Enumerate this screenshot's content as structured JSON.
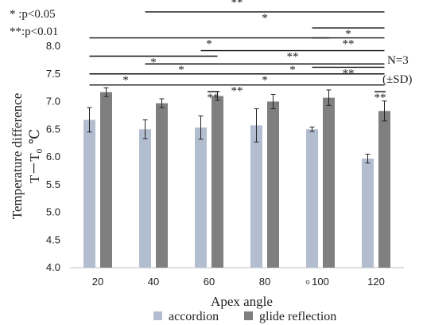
{
  "chart_data": {
    "type": "bar",
    "categories": [
      "20",
      "40",
      "60",
      "80",
      "100",
      "120"
    ],
    "series": [
      {
        "name": "accordion",
        "color": "#b3bdd0",
        "values": [
          6.67,
          6.5,
          6.53,
          6.57,
          6.5,
          5.97
        ],
        "errors": [
          0.22,
          0.17,
          0.21,
          0.3,
          0.04,
          0.08
        ]
      },
      {
        "name": "glide reflection",
        "color": "#7f7f7f",
        "values": [
          7.17,
          6.97,
          7.1,
          7.0,
          7.07,
          6.83
        ],
        "errors": [
          0.08,
          0.08,
          0.08,
          0.13,
          0.14,
          0.18
        ]
      }
    ],
    "ylim": [
      4.0,
      8.0
    ],
    "yticks": [
      "4.0",
      "4.5",
      "5.0",
      "5.5",
      "6.0",
      "6.5",
      "7.0",
      "7.5",
      "8.0"
    ],
    "xlabel": "Apex angle",
    "xunit": "°",
    "ylabel_line1": "Temperature difference",
    "ylabel_line2_main": "T－T",
    "ylabel_line2_sub": "0",
    "ylabel_line2_unit": "℃",
    "sig_legend": [
      "*  :p<0.05",
      "**:p<0.01"
    ],
    "n_label": "N=3",
    "sd_label": "(±SD)",
    "significance": [
      {
        "y": 8.9,
        "from": 0,
        "to": 5,
        "label": "**"
      },
      {
        "y": 8.62,
        "from": 1,
        "to": 5,
        "label": "*"
      },
      {
        "y": 8.15,
        "from": 0,
        "to": 4,
        "label": "*"
      },
      {
        "y": 8.33,
        "from": 4,
        "to": 5,
        "label": "*"
      },
      {
        "y": 8.15,
        "from": 4,
        "to": 5,
        "label": "**"
      },
      {
        "y": 7.82,
        "from": 0,
        "to": 2,
        "label": "*"
      },
      {
        "y": 7.92,
        "from": 2,
        "to": 5,
        "label": "**"
      },
      {
        "y": 7.68,
        "from": 1,
        "to": 2,
        "label": "*"
      },
      {
        "y": 7.68,
        "from": 2,
        "to": 5,
        "label": "*"
      },
      {
        "y": 7.5,
        "from": 0,
        "to": 1,
        "label": "*"
      },
      {
        "y": 7.5,
        "from": 1,
        "to": 5,
        "label": "*"
      },
      {
        "y": 7.3,
        "from": 0,
        "to": 5,
        "label": "**"
      },
      {
        "y": 7.62,
        "from": 4,
        "to": 5,
        "label": "**"
      },
      {
        "y": 7.18,
        "from": 2,
        "to": 2,
        "label": "**"
      },
      {
        "y": 7.18,
        "from": 5,
        "to": 5,
        "label": "**"
      }
    ]
  }
}
